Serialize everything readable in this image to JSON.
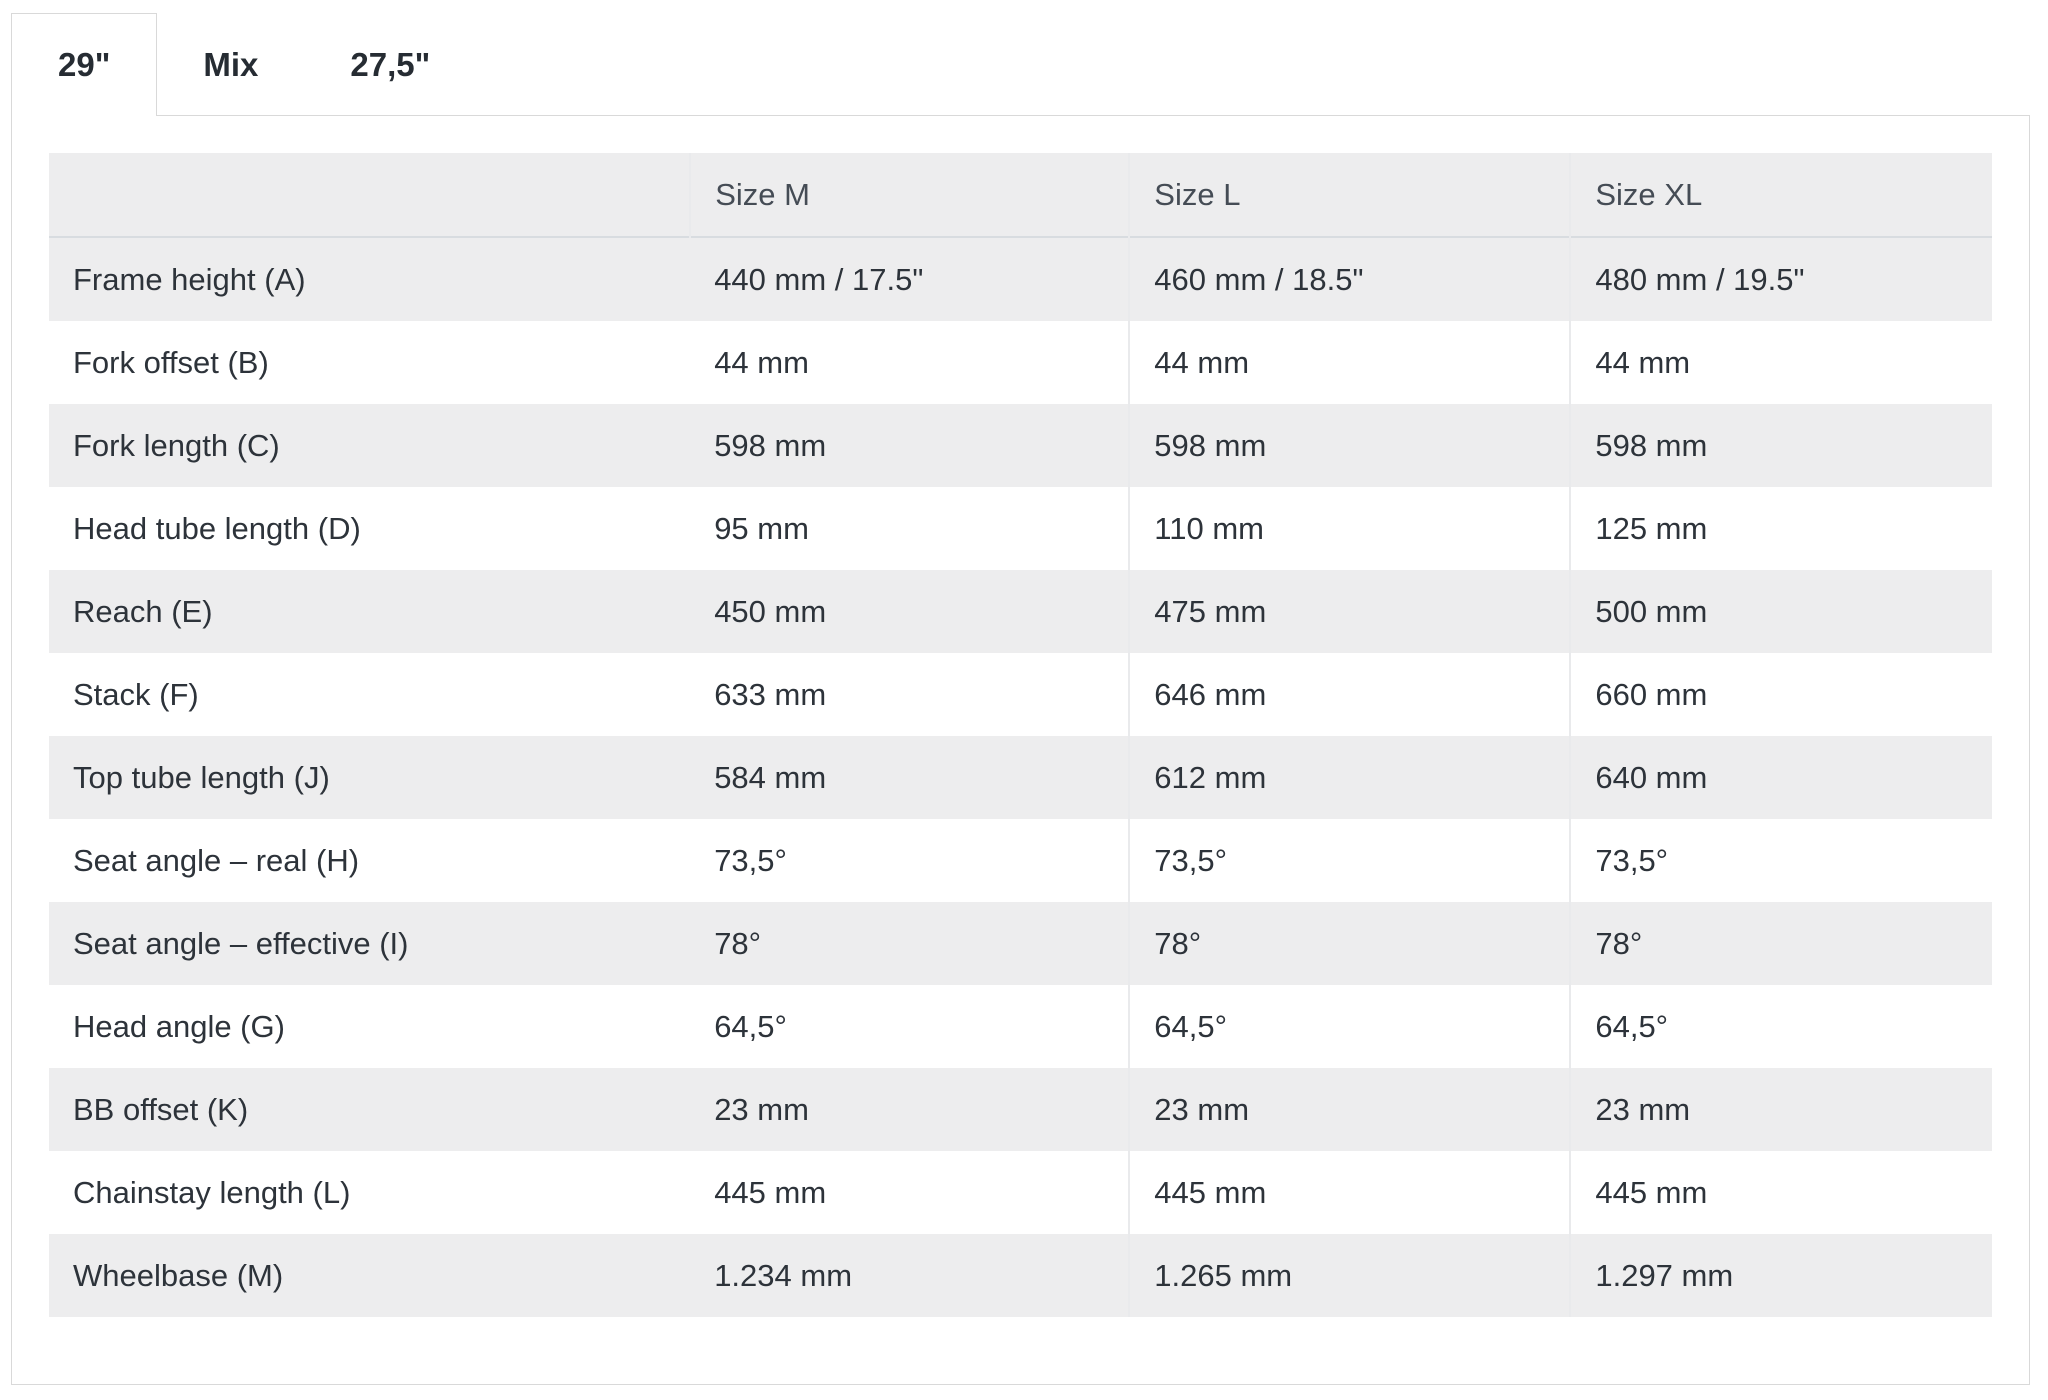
{
  "tabs": [
    {
      "label": "29\"",
      "active": true
    },
    {
      "label": "Mix",
      "active": false
    },
    {
      "label": "27,5\"",
      "active": false
    }
  ],
  "table": {
    "column_headers": [
      "Size M",
      "Size L",
      "Size XL"
    ],
    "rows": [
      {
        "label": "Frame height (A)",
        "values": [
          "440 mm / 17.5\"",
          "460 mm / 18.5\"",
          "480 mm / 19.5\""
        ]
      },
      {
        "label": "Fork offset (B)",
        "values": [
          "44 mm",
          "44 mm",
          "44 mm"
        ]
      },
      {
        "label": "Fork length (C)",
        "values": [
          "598 mm",
          "598 mm",
          "598 mm"
        ]
      },
      {
        "label": "Head tube length (D)",
        "values": [
          "95 mm",
          "110 mm",
          "125 mm"
        ]
      },
      {
        "label": "Reach (E)",
        "values": [
          "450 mm",
          "475 mm",
          "500 mm"
        ]
      },
      {
        "label": "Stack (F)",
        "values": [
          "633 mm",
          "646 mm",
          "660 mm"
        ]
      },
      {
        "label": "Top tube length (J)",
        "values": [
          "584 mm",
          "612 mm",
          "640 mm"
        ]
      },
      {
        "label": "Seat angle – real (H)",
        "values": [
          "73,5°",
          "73,5°",
          "73,5°"
        ]
      },
      {
        "label": "Seat angle – effective (I)",
        "values": [
          "78°",
          "78°",
          "78°"
        ]
      },
      {
        "label": "Head angle (G)",
        "values": [
          "64,5°",
          "64,5°",
          "64,5°"
        ]
      },
      {
        "label": "BB offset (K)",
        "values": [
          "23 mm",
          "23 mm",
          "23 mm"
        ]
      },
      {
        "label": "Chainstay length (L)",
        "values": [
          "445 mm",
          "445 mm",
          "445 mm"
        ]
      },
      {
        "label": "Wheelbase (M)",
        "values": [
          "1.234 mm",
          "1.265 mm",
          "1.297 mm"
        ]
      }
    ]
  },
  "colors": {
    "row_stripe": "#ededee",
    "panel_border": "#d9d9d9",
    "header_separator": "#d8dce0",
    "body_text": "#2d333a",
    "header_text": "#454c55"
  }
}
